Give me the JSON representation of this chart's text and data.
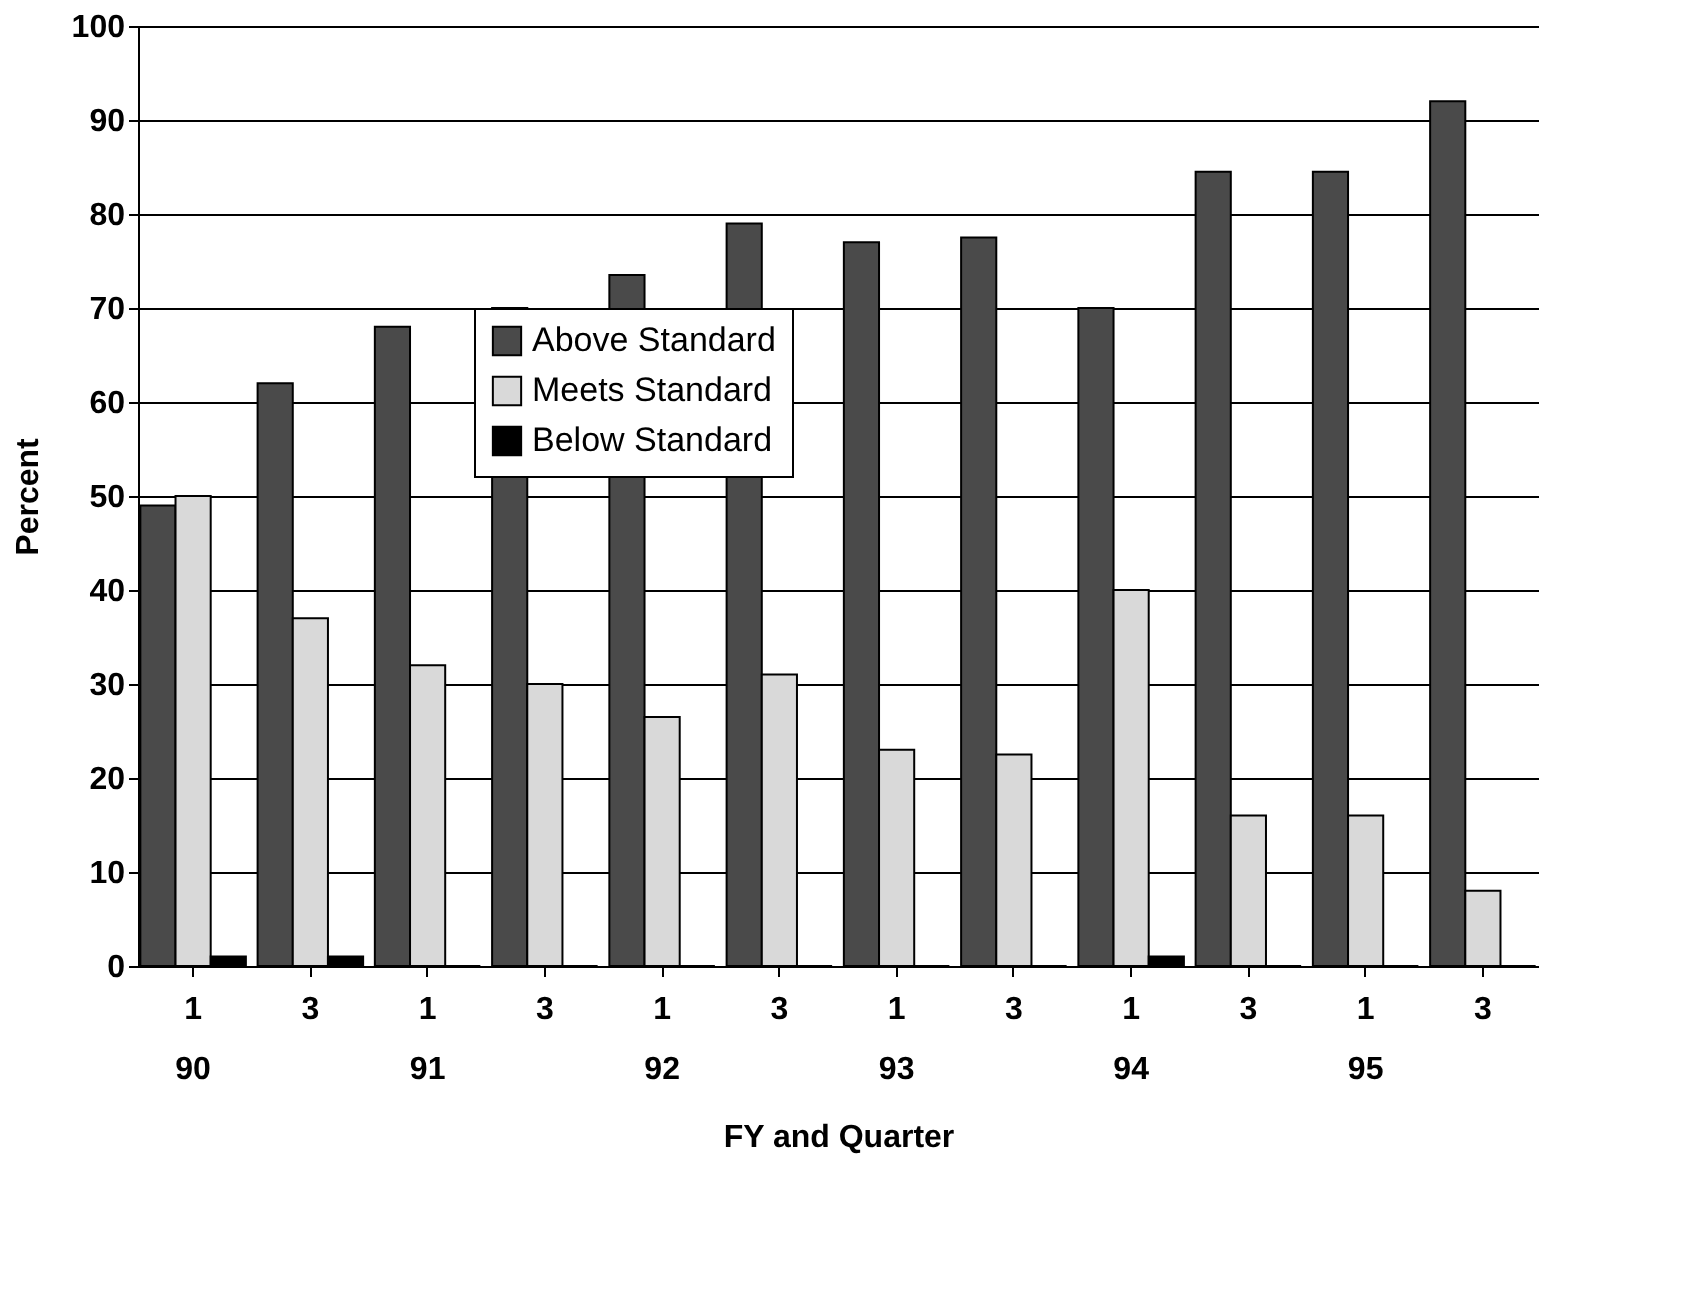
{
  "chart_data": {
    "type": "bar",
    "xlabel": "FY and Quarter",
    "ylabel": "Percent",
    "categories": [
      "1\n90",
      "3",
      "1\n91",
      "3",
      "1\n92",
      "3",
      "1\n93",
      "3",
      "1\n94",
      "3",
      "1\n95",
      "3"
    ],
    "series": [
      {
        "name": "Above Standard",
        "color": "#4a4a4a",
        "values": [
          49,
          62,
          68,
          70,
          73.5,
          79,
          77,
          77.5,
          70,
          84.5,
          84.5,
          92
        ]
      },
      {
        "name": "Meets Standard",
        "color": "#d9d9d9",
        "values": [
          50,
          37,
          32,
          30,
          26.5,
          31,
          23,
          22.5,
          40,
          16,
          16,
          8
        ]
      },
      {
        "name": "Below Standard",
        "color": "#000000",
        "values": [
          1,
          1,
          0,
          0,
          0,
          0,
          0,
          0,
          1,
          0,
          0,
          0
        ]
      }
    ],
    "ylim": [
      0,
      100
    ],
    "yticks": [
      0,
      10,
      20,
      30,
      40,
      50,
      60,
      70,
      80,
      90,
      100
    ],
    "grid": "y",
    "legend": "center"
  }
}
